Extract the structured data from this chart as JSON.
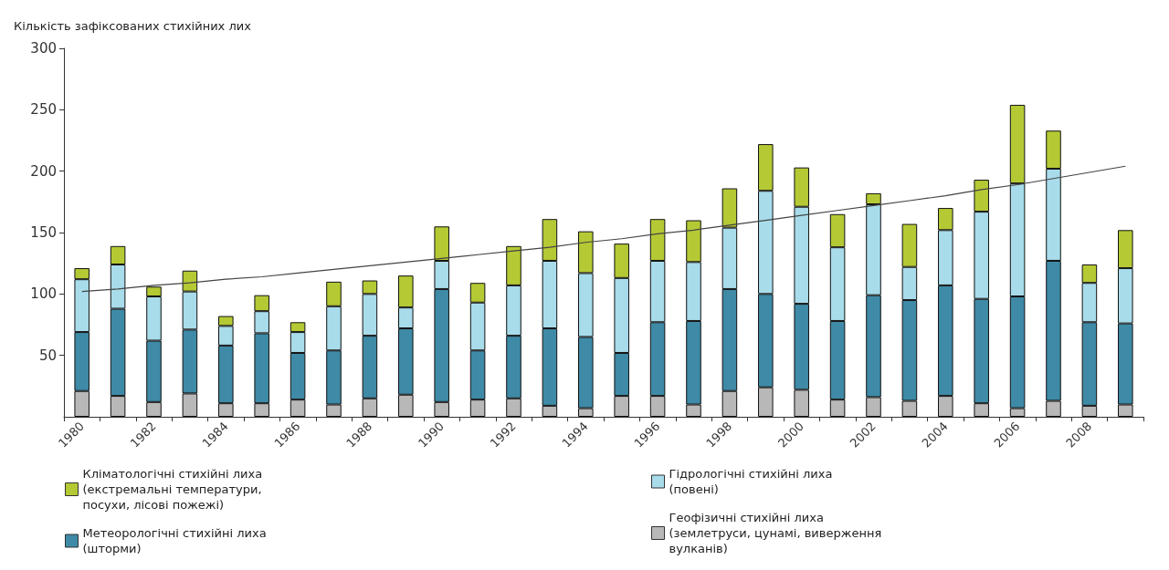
{
  "chart_data": {
    "type": "bar",
    "stacked": true,
    "ylabel": "Кількість зафіксованих стихійних лих",
    "categories": [
      "1980",
      null,
      "1982",
      null,
      "1984",
      null,
      "1986",
      null,
      "1988",
      null,
      "1990",
      null,
      "1992",
      null,
      "1994",
      null,
      "1996",
      null,
      "1998",
      null,
      "2000",
      null,
      "2002",
      null,
      "2004",
      null,
      "2006",
      null,
      "2008",
      null
    ],
    "series": [
      {
        "name": "Геофізичні стихійні лиха (землетруси, цунамі, виверження вулканів)",
        "color": "#b8b8b8",
        "values": [
          21,
          17,
          12,
          19,
          11,
          11,
          14,
          10,
          15,
          18,
          12,
          14,
          15,
          9,
          7,
          17,
          17,
          10,
          21,
          24,
          22,
          14,
          16,
          13,
          17,
          11,
          7,
          13,
          9,
          10
        ]
      },
      {
        "name": "Метеорологічні стихійні лиха (шторми)",
        "color": "#3f8aa6",
        "values": [
          48,
          71,
          50,
          52,
          47,
          57,
          38,
          44,
          51,
          54,
          92,
          40,
          51,
          63,
          58,
          35,
          60,
          68,
          83,
          76,
          70,
          64,
          83,
          82,
          90,
          85,
          91,
          114,
          68,
          66
        ]
      },
      {
        "name": "Гідрологічні стихійні лиха (повені)",
        "color": "#a8dcea",
        "values": [
          43,
          36,
          36,
          31,
          16,
          18,
          17,
          36,
          34,
          17,
          23,
          39,
          41,
          55,
          52,
          61,
          50,
          48,
          50,
          84,
          79,
          60,
          74,
          27,
          45,
          71,
          92,
          75,
          32,
          45
        ]
      },
      {
        "name": "Кліматологічні стихійні лиха (екстремальні температури, посухи, лісові пожежі)",
        "color": "#b5c934",
        "values": [
          9,
          15,
          8,
          17,
          8,
          13,
          8,
          20,
          11,
          26,
          28,
          16,
          32,
          34,
          34,
          28,
          34,
          34,
          32,
          38,
          32,
          27,
          9,
          35,
          18,
          26,
          64,
          31,
          15,
          31
        ]
      },
      {
        "type": "line",
        "color": "#444444",
        "values": [
          102,
          104,
          107,
          109,
          112,
          114,
          117,
          120,
          123,
          126,
          129,
          132,
          135,
          138,
          142,
          145,
          149,
          152,
          156,
          160,
          164,
          168,
          172,
          176,
          180,
          185,
          189,
          194,
          199,
          204
        ]
      }
    ],
    "ylim": [
      0,
      300
    ],
    "yticks": [
      50,
      100,
      150,
      200,
      250,
      300
    ],
    "grid": false,
    "legend": "bottom",
    "marker": "none"
  }
}
